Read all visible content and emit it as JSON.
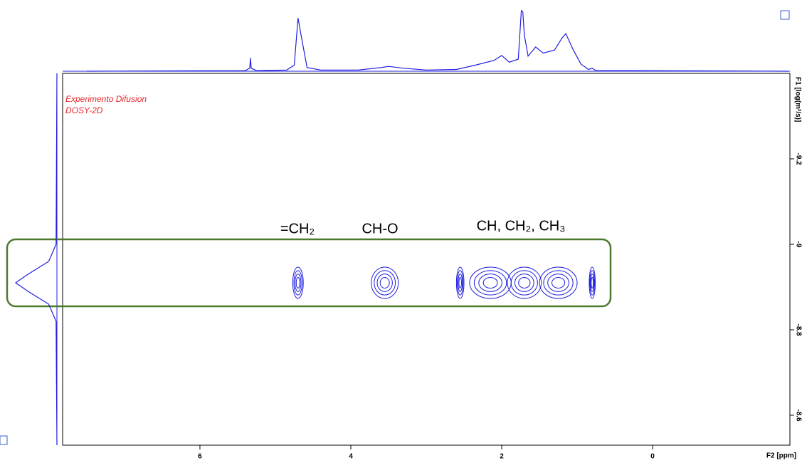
{
  "chart_data": {
    "type": "dosy",
    "notes": [
      "Experimento Difusion",
      "DOSY-2D"
    ],
    "x_label": "F2 [ppm]",
    "y_label": "F1 [log(m²/s)]",
    "xlim": [
      7.82,
      -1.82
    ],
    "xticks": [
      6,
      4,
      2,
      0
    ],
    "ylim": [
      -9.4,
      -8.53
    ],
    "yticks": [
      -9.2,
      -9.0,
      -8.8,
      -8.6
    ],
    "color": "#1f1fe0",
    "groups": [
      "=CH₂",
      "CH-O",
      "CH, CH₂, CH₃"
    ],
    "projection_f2": {
      "x": [
        7.5,
        5.4,
        5.34,
        5.33,
        5.32,
        5.25,
        4.85,
        4.75,
        4.7,
        4.66,
        4.58,
        4.4,
        3.9,
        3.6,
        3.5,
        3.3,
        3.0,
        2.6,
        2.35,
        2.1,
        2.0,
        1.9,
        1.78,
        1.74,
        1.72,
        1.7,
        1.65,
        1.55,
        1.45,
        1.3,
        1.2,
        1.15,
        1.05,
        0.95,
        0.85,
        0.8,
        0.75,
        0.2,
        -1.8
      ],
      "values": [
        0,
        1,
        5,
        22,
        5,
        1,
        2,
        10,
        88,
        60,
        6,
        2,
        2,
        6,
        8,
        5,
        2,
        3,
        10,
        18,
        26,
        15,
        20,
        100,
        98,
        60,
        25,
        40,
        30,
        35,
        55,
        62,
        35,
        12,
        3,
        5,
        1,
        1,
        0
      ]
    },
    "projection_f1": {
      "y": [
        -9.4,
        -9.0,
        -8.96,
        -8.93,
        -8.91,
        -8.89,
        -8.86,
        -8.82,
        -8.53
      ],
      "values": [
        0,
        2,
        20,
        70,
        100,
        70,
        20,
        2,
        0
      ]
    },
    "cross_peaks": {
      "x": [
        4.7,
        3.55,
        2.55,
        2.15,
        1.7,
        1.25,
        0.8
      ],
      "values": [
        -8.91,
        -8.91,
        -8.91,
        -8.91,
        -8.91,
        -8.91,
        -8.91
      ],
      "widths": [
        0.14,
        0.36,
        0.1,
        0.55,
        0.45,
        0.5,
        0.08
      ]
    }
  }
}
